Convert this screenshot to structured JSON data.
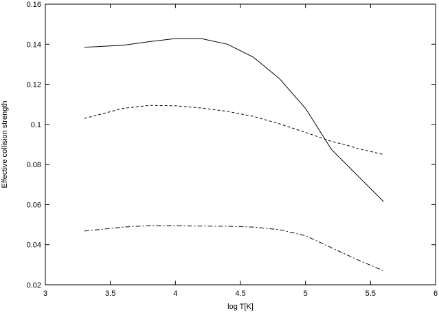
{
  "chart_data": {
    "type": "line",
    "title": "",
    "xlabel": "log T[K]",
    "ylabel": "Effective collision strength",
    "xlim": [
      3,
      6
    ],
    "ylim": [
      0.02,
      0.16
    ],
    "xticks": [
      3,
      3.5,
      4,
      4.5,
      5,
      5.5,
      6
    ],
    "xtick_labels": [
      "3",
      "3.5",
      "4",
      "4.5",
      "5",
      "5.5",
      "6"
    ],
    "yticks": [
      0.02,
      0.04,
      0.06,
      0.08,
      0.1,
      0.12,
      0.14,
      0.16
    ],
    "ytick_labels": [
      "0.02",
      "0.04",
      "0.06",
      "0.08",
      "0.1",
      "0.12",
      "0.14",
      "0.16"
    ],
    "grid": false,
    "legend": "none",
    "series": [
      {
        "style": "solid",
        "x": [
          3.3,
          3.6,
          3.8,
          4.0,
          4.2,
          4.4,
          4.6,
          4.8,
          5.0,
          5.2,
          5.4,
          5.6
        ],
        "y": [
          0.1385,
          0.1395,
          0.1413,
          0.1428,
          0.1428,
          0.14,
          0.1335,
          0.1228,
          0.108,
          0.0875,
          0.0745,
          0.0615
        ]
      },
      {
        "style": "dashed",
        "x": [
          3.3,
          3.6,
          3.8,
          4.0,
          4.2,
          4.4,
          4.6,
          4.8,
          5.0,
          5.2,
          5.3,
          5.4,
          5.6
        ],
        "y": [
          0.103,
          0.108,
          0.1095,
          0.1093,
          0.1082,
          0.1065,
          0.104,
          0.1003,
          0.096,
          0.0915,
          0.09,
          0.088,
          0.085
        ]
      },
      {
        "style": "dashdot",
        "x": [
          3.3,
          3.6,
          3.8,
          4.0,
          4.2,
          4.4,
          4.6,
          4.8,
          5.0,
          5.2,
          5.4,
          5.6
        ],
        "y": [
          0.0468,
          0.0488,
          0.0495,
          0.0495,
          0.0493,
          0.0492,
          0.0488,
          0.0475,
          0.0445,
          0.0385,
          0.0325,
          0.027
        ]
      }
    ]
  }
}
